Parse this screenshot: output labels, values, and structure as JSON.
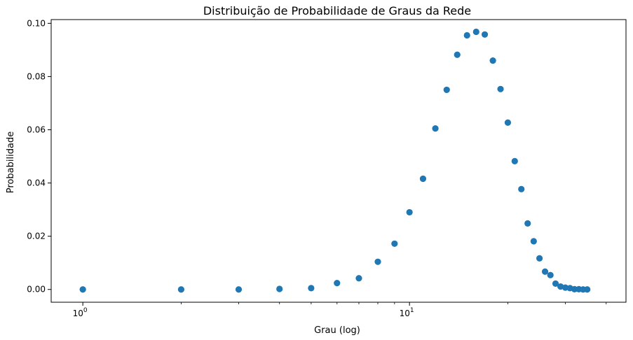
{
  "chart_data": {
    "type": "scatter",
    "title": "Distribuição de Probabilidade de Graus da Rede",
    "xlabel": "Grau (log)",
    "ylabel": "Probabilidade",
    "xscale": "log",
    "xlim": [
      0.8,
      46
    ],
    "ylim": [
      -0.0048,
      0.1014
    ],
    "grid": false,
    "legend": "none",
    "marker_color": "#1f77b4",
    "x_ticks": [
      {
        "value": 1,
        "base": "10",
        "exp": "0"
      },
      {
        "value": 10,
        "base": "10",
        "exp": "1"
      }
    ],
    "y_ticks": [
      {
        "value": 0.0,
        "label": "0.00"
      },
      {
        "value": 0.02,
        "label": "0.02"
      },
      {
        "value": 0.04,
        "label": "0.04"
      },
      {
        "value": 0.06,
        "label": "0.06"
      },
      {
        "value": 0.08,
        "label": "0.08"
      },
      {
        "value": 0.1,
        "label": "0.10"
      }
    ],
    "minor_x_ticks": [
      2,
      3,
      4,
      5,
      6,
      7,
      8,
      9,
      20,
      30,
      40
    ],
    "points": [
      {
        "x": 1,
        "y": 0.0
      },
      {
        "x": 2,
        "y": 0.0
      },
      {
        "x": 3,
        "y": 0.0
      },
      {
        "x": 4,
        "y": 0.0002
      },
      {
        "x": 5,
        "y": 0.0005
      },
      {
        "x": 6,
        "y": 0.0024
      },
      {
        "x": 7,
        "y": 0.0042
      },
      {
        "x": 8,
        "y": 0.0104
      },
      {
        "x": 9,
        "y": 0.0172
      },
      {
        "x": 10,
        "y": 0.029
      },
      {
        "x": 11,
        "y": 0.0416
      },
      {
        "x": 12,
        "y": 0.0605
      },
      {
        "x": 13,
        "y": 0.075
      },
      {
        "x": 14,
        "y": 0.0882
      },
      {
        "x": 15,
        "y": 0.0955
      },
      {
        "x": 16,
        "y": 0.0968
      },
      {
        "x": 17,
        "y": 0.0958
      },
      {
        "x": 18,
        "y": 0.086
      },
      {
        "x": 19,
        "y": 0.0753
      },
      {
        "x": 20,
        "y": 0.0627
      },
      {
        "x": 21,
        "y": 0.0482
      },
      {
        "x": 22,
        "y": 0.0377
      },
      {
        "x": 23,
        "y": 0.0248
      },
      {
        "x": 24,
        "y": 0.0181
      },
      {
        "x": 25,
        "y": 0.0117
      },
      {
        "x": 26,
        "y": 0.0067
      },
      {
        "x": 27,
        "y": 0.0054
      },
      {
        "x": 28,
        "y": 0.0022
      },
      {
        "x": 29,
        "y": 0.0011
      },
      {
        "x": 30,
        "y": 0.0007
      },
      {
        "x": 31,
        "y": 0.0005
      },
      {
        "x": 32,
        "y": 0.0001
      },
      {
        "x": 33,
        "y": 0.0001
      },
      {
        "x": 34,
        "y": 0.0
      },
      {
        "x": 35,
        "y": 0.0
      }
    ]
  }
}
